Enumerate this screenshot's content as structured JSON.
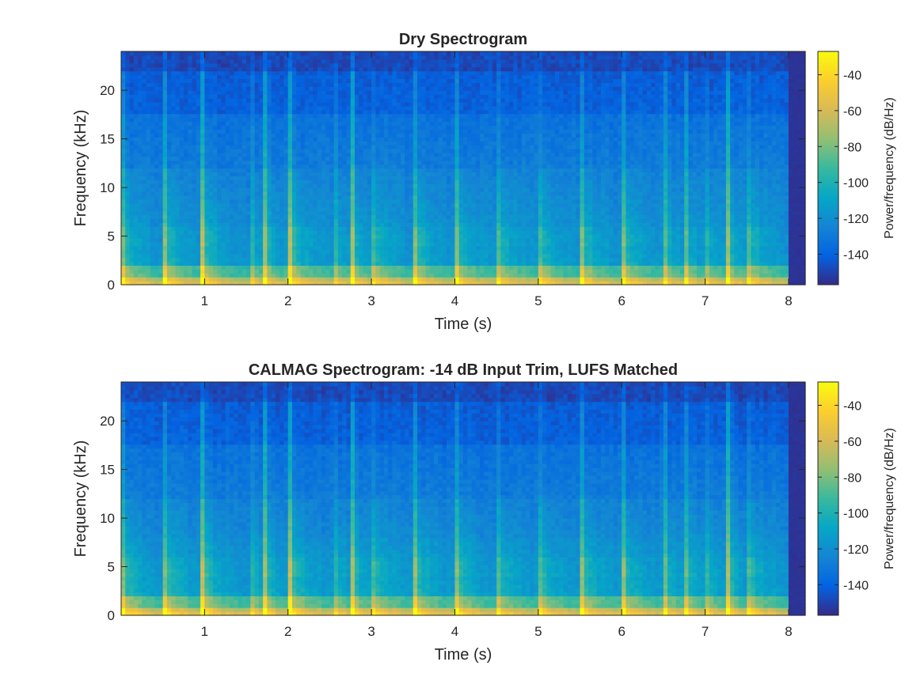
{
  "chart_data": [
    {
      "type": "heatmap",
      "title": "Dry Spectrogram",
      "xlabel": "Time (s)",
      "ylabel": "Frequency (kHz)",
      "colorbar_label": "Power/frequency (dB/Hz)",
      "colormap": "parula",
      "xlim": [
        0,
        8.2
      ],
      "ylim": [
        0,
        24
      ],
      "clim": [
        -157,
        -27
      ],
      "x_ticks": [
        1,
        2,
        3,
        4,
        5,
        6,
        7,
        8
      ],
      "y_ticks": [
        0,
        5,
        10,
        15,
        20
      ],
      "colorbar_ticks": [
        -40,
        -60,
        -80,
        -100,
        -120,
        -140
      ],
      "note_onsets_s": [
        0,
        0.5,
        0.97,
        1.53,
        1.72,
        2.02,
        2.53,
        2.77,
        2.98,
        3.5,
        4.0,
        4.48,
        4.98,
        5.5,
        6.0,
        6.5,
        6.75,
        6.98,
        7.27,
        7.48
      ],
      "signal_end_s": 8.02,
      "grid": false
    },
    {
      "type": "heatmap",
      "title": "CALMAG Spectrogram: -14 dB Input Trim, LUFS Matched",
      "xlabel": "Time (s)",
      "ylabel": "Frequency (kHz)",
      "colorbar_label": "Power/frequency (dB/Hz)",
      "colormap": "parula",
      "xlim": [
        0,
        8.2
      ],
      "ylim": [
        0,
        24
      ],
      "clim": [
        -157,
        -27
      ],
      "x_ticks": [
        1,
        2,
        3,
        4,
        5,
        6,
        7,
        8
      ],
      "y_ticks": [
        0,
        5,
        10,
        15,
        20
      ],
      "colorbar_ticks": [
        -40,
        -60,
        -80,
        -100,
        -120,
        -140
      ],
      "note_onsets_s": [
        0,
        0.5,
        0.97,
        1.53,
        1.72,
        2.02,
        2.53,
        2.77,
        2.98,
        3.5,
        4.0,
        4.48,
        4.98,
        5.5,
        6.0,
        6.5,
        6.75,
        6.98,
        7.27,
        7.48
      ],
      "signal_end_s": 8.02,
      "grid": false
    }
  ],
  "colors": {
    "parula_stops": [
      "#352a87",
      "#0363e1",
      "#1485d4",
      "#06a7c6",
      "#38b99e",
      "#92bf73",
      "#d9ba56",
      "#fcce2e",
      "#f9fb0e"
    ],
    "axis": "#262626",
    "background": "#ffffff"
  }
}
